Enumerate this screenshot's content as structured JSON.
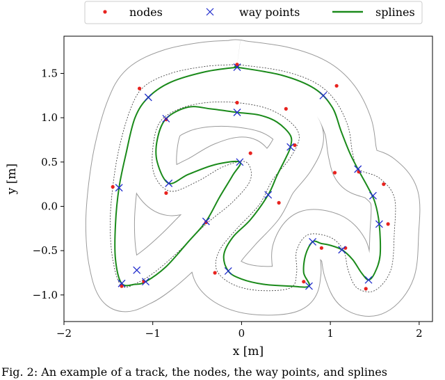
{
  "chart_data": {
    "type": "scatter",
    "xlabel": "x [m]",
    "ylabel": "y [m]",
    "xlim": [
      -2.0,
      2.15
    ],
    "ylim": [
      -1.3,
      1.92
    ],
    "xticks": [
      -2,
      -1,
      0,
      1,
      2
    ],
    "yticks": [
      -1.0,
      -0.5,
      0.0,
      0.5,
      1.0,
      1.5
    ],
    "xtick_labels": [
      "−2",
      "−1",
      "0",
      "1",
      "2"
    ],
    "ytick_labels": [
      "−1.0",
      "−0.5",
      "0.0",
      "0.5",
      "1.0",
      "1.5"
    ],
    "grid": false,
    "legend_position": "top-center",
    "legend": [
      "nodes",
      "way points",
      "splines"
    ],
    "colors": {
      "nodes": "#e8231f",
      "waypoints": "#1f2bcc",
      "splines": "#1a8a1a",
      "track_outer": "#9a9a9a",
      "track_center": "#333333"
    },
    "nodes": [
      [
        -0.05,
        1.6
      ],
      [
        0.5,
        1.1
      ],
      [
        0.6,
        0.69
      ],
      [
        1.05,
        0.38
      ],
      [
        1.6,
        0.25
      ],
      [
        1.65,
        -0.2
      ],
      [
        1.4,
        -0.93
      ],
      [
        0.9,
        -0.47
      ],
      [
        0.7,
        -0.85
      ],
      [
        -0.3,
        -0.75
      ],
      [
        0.42,
        0.04
      ],
      [
        0.1,
        0.6
      ],
      [
        -0.85,
        0.15
      ],
      [
        -0.4,
        -0.18
      ],
      [
        -1.1,
        -0.85
      ],
      [
        -1.35,
        -0.9
      ],
      [
        -1.45,
        0.22
      ],
      [
        -1.15,
        1.33
      ],
      [
        -0.85,
        0.98
      ],
      [
        -0.05,
        1.17
      ],
      [
        1.07,
        1.36
      ],
      [
        1.32,
        0.39
      ],
      [
        1.17,
        -0.47
      ]
    ],
    "waypoints": [
      [
        -0.05,
        1.57
      ],
      [
        0.92,
        1.25
      ],
      [
        1.31,
        0.42
      ],
      [
        1.48,
        0.12
      ],
      [
        1.55,
        -0.2
      ],
      [
        1.43,
        -0.83
      ],
      [
        0.76,
        -0.9
      ],
      [
        0.8,
        -0.4
      ],
      [
        1.13,
        -0.49
      ],
      [
        -0.15,
        -0.73
      ],
      [
        0.3,
        0.13
      ],
      [
        -0.02,
        0.5
      ],
      [
        -0.82,
        0.26
      ],
      [
        -0.4,
        -0.17
      ],
      [
        -1.08,
        -0.85
      ],
      [
        -1.35,
        -0.87
      ],
      [
        -1.38,
        0.21
      ],
      [
        -1.05,
        1.23
      ],
      [
        -0.85,
        0.99
      ],
      [
        -0.05,
        1.06
      ],
      [
        0.55,
        0.67
      ],
      [
        -1.18,
        -0.72
      ]
    ],
    "spline": [
      [
        -0.05,
        1.57
      ],
      [
        0.45,
        1.48
      ],
      [
        0.82,
        1.33
      ],
      [
        1.02,
        1.12
      ],
      [
        1.12,
        0.85
      ],
      [
        1.22,
        0.6
      ],
      [
        1.31,
        0.42
      ],
      [
        1.42,
        0.22
      ],
      [
        1.5,
        0.05
      ],
      [
        1.55,
        -0.2
      ],
      [
        1.56,
        -0.55
      ],
      [
        1.5,
        -0.75
      ],
      [
        1.43,
        -0.83
      ],
      [
        1.35,
        -0.75
      ],
      [
        1.25,
        -0.6
      ],
      [
        1.13,
        -0.49
      ],
      [
        1.0,
        -0.44
      ],
      [
        0.9,
        -0.42
      ],
      [
        0.8,
        -0.4
      ],
      [
        0.72,
        -0.55
      ],
      [
        0.7,
        -0.75
      ],
      [
        0.76,
        -0.9
      ],
      [
        0.55,
        -0.9
      ],
      [
        0.25,
        -0.88
      ],
      [
        0.0,
        -0.82
      ],
      [
        -0.15,
        -0.73
      ],
      [
        -0.2,
        -0.55
      ],
      [
        -0.1,
        -0.35
      ],
      [
        0.1,
        -0.15
      ],
      [
        0.3,
        0.13
      ],
      [
        0.4,
        0.35
      ],
      [
        0.5,
        0.55
      ],
      [
        0.55,
        0.67
      ],
      [
        0.55,
        0.8
      ],
      [
        0.4,
        0.95
      ],
      [
        0.2,
        1.03
      ],
      [
        -0.05,
        1.06
      ],
      [
        -0.35,
        1.1
      ],
      [
        -0.6,
        1.12
      ],
      [
        -0.85,
        0.99
      ],
      [
        -0.95,
        0.75
      ],
      [
        -0.95,
        0.5
      ],
      [
        -0.82,
        0.26
      ],
      [
        -0.6,
        0.36
      ],
      [
        -0.3,
        0.47
      ],
      [
        -0.02,
        0.5
      ],
      [
        -0.1,
        0.35
      ],
      [
        -0.25,
        0.1
      ],
      [
        -0.4,
        -0.17
      ],
      [
        -0.6,
        -0.4
      ],
      [
        -0.85,
        -0.68
      ],
      [
        -1.08,
        -0.85
      ],
      [
        -1.2,
        -0.88
      ],
      [
        -1.35,
        -0.87
      ],
      [
        -1.42,
        -0.6
      ],
      [
        -1.42,
        -0.2
      ],
      [
        -1.38,
        0.21
      ],
      [
        -1.3,
        0.6
      ],
      [
        -1.2,
        1.0
      ],
      [
        -1.05,
        1.23
      ],
      [
        -0.8,
        1.4
      ],
      [
        -0.4,
        1.52
      ],
      [
        -0.05,
        1.57
      ]
    ],
    "track_center": [
      [
        -0.05,
        1.6
      ],
      [
        0.45,
        1.53
      ],
      [
        0.82,
        1.4
      ],
      [
        1.05,
        1.2
      ],
      [
        1.2,
        0.9
      ],
      [
        1.25,
        0.6
      ],
      [
        1.32,
        0.42
      ],
      [
        1.55,
        0.32
      ],
      [
        1.72,
        0.1
      ],
      [
        1.72,
        -0.3
      ],
      [
        1.68,
        -0.72
      ],
      [
        1.5,
        -0.95
      ],
      [
        1.3,
        -0.92
      ],
      [
        1.2,
        -0.72
      ],
      [
        1.15,
        -0.5
      ],
      [
        1.0,
        -0.35
      ],
      [
        0.75,
        -0.32
      ],
      [
        0.62,
        -0.5
      ],
      [
        0.62,
        -0.75
      ],
      [
        0.55,
        -0.92
      ],
      [
        0.2,
        -0.95
      ],
      [
        -0.1,
        -0.88
      ],
      [
        -0.28,
        -0.72
      ],
      [
        -0.25,
        -0.5
      ],
      [
        -0.05,
        -0.25
      ],
      [
        0.2,
        0.02
      ],
      [
        0.35,
        0.3
      ],
      [
        0.55,
        0.55
      ],
      [
        0.65,
        0.78
      ],
      [
        0.55,
        0.95
      ],
      [
        0.3,
        1.1
      ],
      [
        -0.05,
        1.17
      ],
      [
        -0.4,
        1.17
      ],
      [
        -0.7,
        1.1
      ],
      [
        -0.92,
        0.95
      ],
      [
        -1.0,
        0.65
      ],
      [
        -0.98,
        0.35
      ],
      [
        -0.8,
        0.17
      ],
      [
        -0.5,
        0.28
      ],
      [
        -0.2,
        0.45
      ],
      [
        0.05,
        0.5
      ],
      [
        0.1,
        0.3
      ],
      [
        -0.1,
        0.05
      ],
      [
        -0.4,
        -0.2
      ],
      [
        -0.7,
        -0.5
      ],
      [
        -0.95,
        -0.72
      ],
      [
        -1.15,
        -0.85
      ],
      [
        -1.35,
        -0.9
      ],
      [
        -1.45,
        -0.6
      ],
      [
        -1.48,
        -0.2
      ],
      [
        -1.45,
        0.22
      ],
      [
        -1.38,
        0.65
      ],
      [
        -1.25,
        1.1
      ],
      [
        -1.1,
        1.35
      ],
      [
        -0.8,
        1.5
      ],
      [
        -0.4,
        1.58
      ],
      [
        -0.05,
        1.6
      ]
    ],
    "track_offset": 0.27,
    "caption": "Fig. 2: An example of a track, the nodes, the way points, and splines"
  }
}
